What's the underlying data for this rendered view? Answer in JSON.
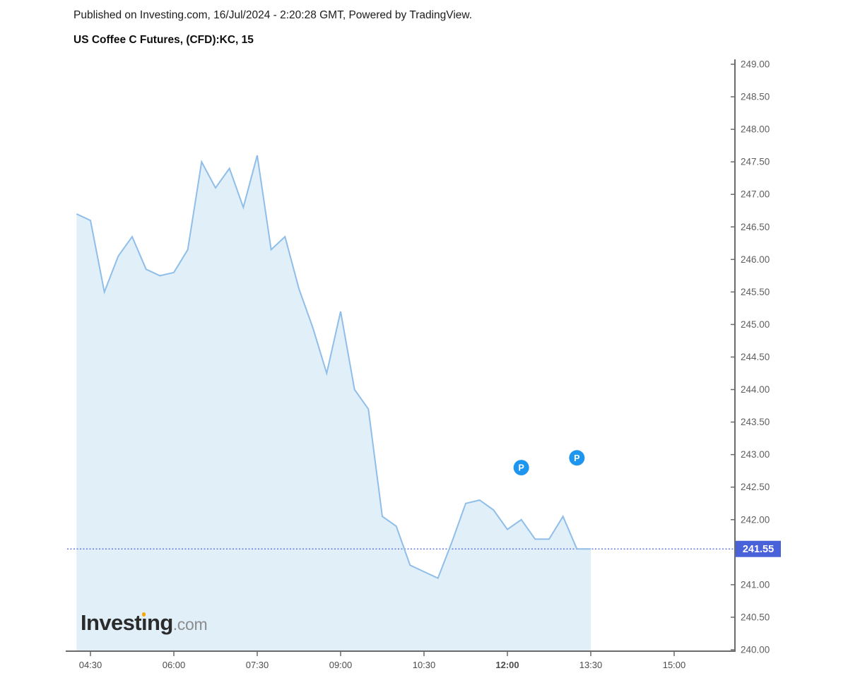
{
  "header": {
    "published_line": "Published on Investing.com, 16/Jul/2024 - 2:20:28 GMT, Powered by TradingView.",
    "instrument_title": "US Coffee C Futures, (CFD):KC, 15"
  },
  "logo": {
    "text": "Investing",
    "suffix": ".com"
  },
  "colors": {
    "series_line": "#8FBEE8",
    "area_fill": "#E1EFF9",
    "price_line": "#4A62D9",
    "price_badge_bg": "#4A62D9",
    "price_badge_text": "#FFFFFF",
    "marker_bg": "#1E96F0",
    "marker_text": "#FFFFFF",
    "axis_line": "#6B6B6B",
    "y_tick_text": "#606060",
    "x_tick_text": "#4C4C4C",
    "logo_dot": "#F7A800"
  },
  "chart_data": {
    "type": "area",
    "title": "US Coffee C Futures, (CFD):KC, 15",
    "symbol": "KC",
    "interval_minutes": 15,
    "x_unit": "time (HH:MM)",
    "grid": false,
    "legend": null,
    "ylim": [
      240.0,
      249.0
    ],
    "x": [
      "04:15",
      "04:30",
      "04:45",
      "05:00",
      "05:15",
      "05:30",
      "05:45",
      "06:00",
      "06:15",
      "06:30",
      "06:45",
      "07:00",
      "07:15",
      "07:30",
      "07:45",
      "08:00",
      "08:15",
      "08:30",
      "08:45",
      "09:00",
      "09:15",
      "09:30",
      "09:45",
      "10:00",
      "10:15",
      "10:30",
      "10:45",
      "11:00",
      "11:15",
      "11:30",
      "11:45",
      "12:00",
      "12:15",
      "12:30",
      "12:45",
      "13:00",
      "13:15",
      "13:30"
    ],
    "values": [
      246.7,
      246.6,
      245.5,
      246.05,
      246.35,
      245.85,
      245.75,
      245.8,
      246.15,
      247.5,
      247.1,
      247.4,
      246.8,
      247.6,
      246.15,
      246.35,
      245.55,
      244.95,
      244.25,
      245.2,
      244.0,
      243.7,
      242.05,
      241.9,
      241.3,
      241.2,
      241.1,
      241.65,
      242.25,
      242.3,
      242.15,
      241.85,
      242.0,
      241.7,
      241.7,
      242.05,
      241.55,
      241.55
    ],
    "x_ticks": [
      "04:30",
      "06:00",
      "07:30",
      "09:00",
      "10:30",
      "12:00",
      "13:30",
      "15:00"
    ],
    "x_tick_bold": "12:00",
    "y_ticks": [
      "249.00",
      "248.50",
      "248.00",
      "247.50",
      "247.00",
      "246.50",
      "246.00",
      "245.50",
      "245.00",
      "244.50",
      "244.00",
      "243.50",
      "243.00",
      "242.50",
      "242.00",
      "241.00",
      "240.50",
      "240.00"
    ],
    "last_price": "241.55",
    "markers": [
      {
        "label": "P",
        "x": "12:15",
        "y": 242.8
      },
      {
        "label": "P",
        "x": "13:15",
        "y": 242.95
      }
    ]
  }
}
